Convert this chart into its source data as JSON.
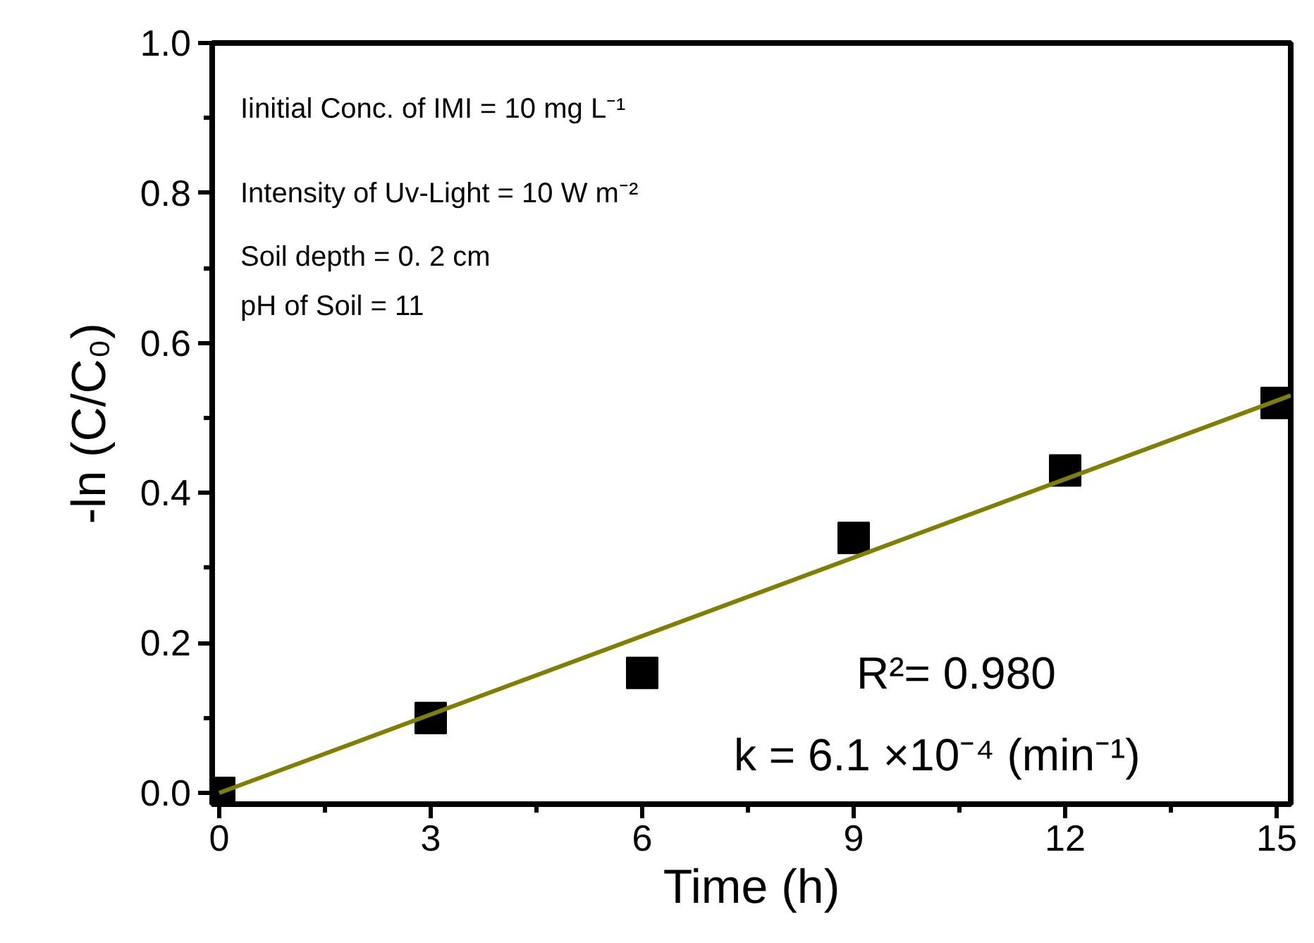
{
  "chart_data": {
    "type": "scatter",
    "xlabel": "Time (h)",
    "ylabel": "-ln (C/C₀)",
    "x": [
      0,
      3,
      6,
      9,
      12,
      15
    ],
    "series": [
      {
        "type": "scatter",
        "color": "#000000",
        "marker": "square",
        "values": [
          0,
          0.1,
          0.16,
          0.34,
          0.43,
          0.52
        ]
      },
      {
        "type": "line",
        "color": "#808000",
        "marker": "none",
        "line_style": "solid",
        "x": [
          0,
          15.2
        ],
        "values": [
          0,
          0.53
        ]
      }
    ],
    "xlim": [
      -0.1,
      15.2
    ],
    "ylim": [
      -0.015,
      1.0
    ],
    "xticks": [
      0,
      3,
      6,
      9,
      12,
      15
    ],
    "yticks": [
      {
        "value": 0,
        "label": "0.0"
      },
      0.2,
      0.4,
      0.6,
      0.8,
      {
        "value": 1,
        "label": "1.0"
      }
    ],
    "grid": false,
    "annotations": [
      "Iinitial Conc.  of IMI =  10 mg L⁻¹",
      "Intensity of Uv-Light = 10 W m⁻²",
      "Soil depth = 0. 2 cm",
      "pH of Soil = 11",
      "R²= 0.980",
      "k = 6.1 ×10⁻⁴ (min⁻¹)"
    ]
  }
}
